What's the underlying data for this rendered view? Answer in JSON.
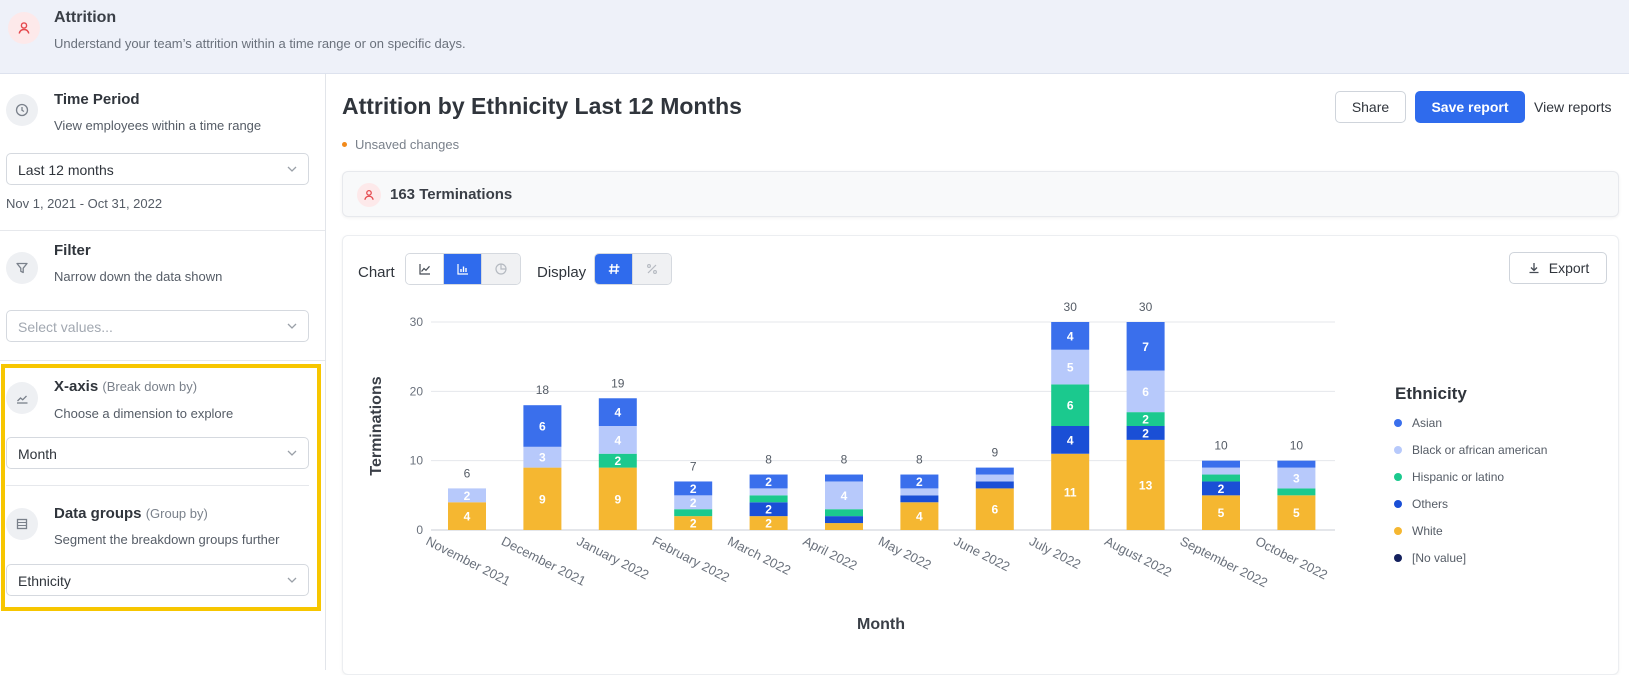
{
  "header": {
    "title": "Attrition",
    "subtitle": "Understand your team’s attrition within a time range or on specific days."
  },
  "sidebar": {
    "time_period": {
      "title": "Time Period",
      "subtitle": "View employees within a time range",
      "value": "Last 12 months",
      "range": "Nov 1, 2021 - Oct 31, 2022"
    },
    "filter": {
      "title": "Filter",
      "subtitle": "Narrow down the data shown",
      "placeholder": "Select values..."
    },
    "xaxis": {
      "title": "X-axis",
      "hint": "(Break down by)",
      "subtitle": "Choose a dimension to explore",
      "value": "Month"
    },
    "groups": {
      "title": "Data groups",
      "hint": "(Group by)",
      "subtitle": "Segment the breakdown groups further",
      "value": "Ethnicity"
    }
  },
  "main": {
    "title": "Attrition by Ethnicity Last 12 Months",
    "unsaved": "Unsaved changes",
    "share_label": "Share",
    "save_label": "Save report",
    "view_label": "View reports",
    "terminations_label": "163 Terminations",
    "chart_label": "Chart",
    "display_label": "Display",
    "export_label": "Export",
    "chart_type_selected": "bar",
    "display_selected": "count"
  },
  "chart_data": {
    "type": "bar",
    "stacked": true,
    "xlabel": "Month",
    "ylabel": "Terminations",
    "ylim": [
      0,
      30
    ],
    "yticks": [
      0,
      10,
      20,
      30
    ],
    "grid": true,
    "legend_title": "Ethnicity",
    "legend_position": "right",
    "categories": [
      "November 2021",
      "December 2021",
      "January 2022",
      "February 2022",
      "March 2022",
      "April 2022",
      "May 2022",
      "June 2022",
      "July 2022",
      "August 2022",
      "September 2022",
      "October 2022"
    ],
    "totals": [
      6,
      18,
      19,
      7,
      8,
      8,
      8,
      9,
      30,
      30,
      10,
      10
    ],
    "series": [
      {
        "name": "White",
        "color": "#f5b731",
        "values": [
          4,
          9,
          9,
          2,
          2,
          1,
          4,
          6,
          11,
          13,
          5,
          5
        ]
      },
      {
        "name": "[No value]",
        "color": "#14215e",
        "values": [
          0,
          0,
          0,
          0,
          0,
          0,
          0,
          0,
          0,
          0,
          0,
          0
        ]
      },
      {
        "name": "Others",
        "color": "#1a4fd6",
        "values": [
          0,
          0,
          0,
          0,
          2,
          1,
          1,
          1,
          4,
          2,
          2,
          0
        ]
      },
      {
        "name": "Hispanic or latino",
        "color": "#1bc98e",
        "values": [
          0,
          0,
          2,
          1,
          1,
          1,
          0,
          0,
          6,
          2,
          1,
          1
        ]
      },
      {
        "name": "Black or african american",
        "color": "#b7c9fb",
        "values": [
          2,
          3,
          4,
          2,
          1,
          4,
          1,
          1,
          5,
          6,
          1,
          3
        ]
      },
      {
        "name": "Asian",
        "color": "#3a6fec",
        "values": [
          0,
          6,
          4,
          2,
          2,
          1,
          2,
          1,
          4,
          7,
          1,
          1
        ]
      }
    ],
    "legend_order": [
      "Asian",
      "Black or african american",
      "Hispanic or latino",
      "Others",
      "White",
      "[No value]"
    ]
  }
}
